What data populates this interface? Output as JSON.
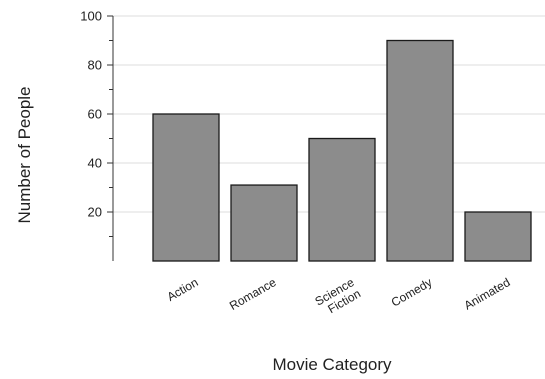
{
  "chart_data": {
    "type": "bar",
    "categories": [
      [
        "Action"
      ],
      [
        "Romance"
      ],
      [
        "Science",
        "Fiction"
      ],
      [
        "Comedy"
      ],
      [
        "Animated"
      ]
    ],
    "values": [
      60,
      31,
      50,
      90,
      20
    ],
    "xlabel": "Movie Category",
    "ylabel": "Number of People",
    "ylim": [
      0,
      100
    ],
    "yticks": [
      "20",
      "40",
      "60",
      "80",
      "100"
    ],
    "grid": true,
    "bar_color": "#8c8c8c",
    "bar_edge_color": "#1a1a1a",
    "grid_color": "#dddddd"
  }
}
